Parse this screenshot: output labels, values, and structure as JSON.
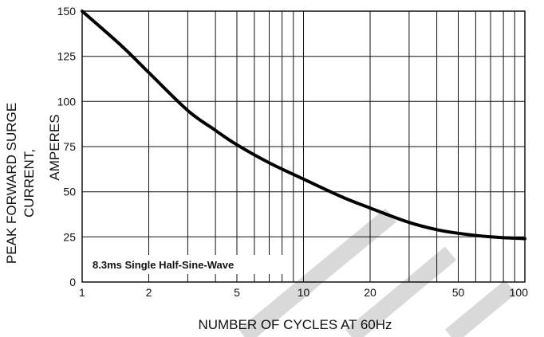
{
  "chart_data": {
    "type": "line",
    "xscale": "log",
    "xlim": [
      1,
      100
    ],
    "ylim": [
      0,
      150
    ],
    "grid": true,
    "xlabel": "NUMBER OF CYCLES AT 60Hz",
    "ylabel_lines": [
      "PEAK FORWARD SURGE",
      "CURRENT,",
      "AMPERES"
    ],
    "xticks": [
      "1",
      "2",
      "5",
      "10",
      "20",
      "50",
      "100"
    ],
    "xtick_values": [
      1,
      2,
      5,
      10,
      20,
      50,
      100
    ],
    "yticks": [
      "0",
      "25",
      "50",
      "75",
      "100",
      "125",
      "150"
    ],
    "ytick_values": [
      0,
      25,
      50,
      75,
      100,
      125,
      150
    ],
    "annotation": "8.3ms Single Half-Sine-Wave",
    "series": [
      {
        "x": [
          1,
          1.5,
          2,
          3,
          4,
          5,
          7,
          10,
          15,
          20,
          30,
          40,
          50,
          70,
          100
        ],
        "y": [
          150,
          131,
          116,
          95,
          84,
          76,
          66,
          57,
          47,
          41,
          33,
          29,
          27,
          25,
          24
        ]
      }
    ]
  },
  "watermark": {
    "color": "#d9d9d9"
  }
}
